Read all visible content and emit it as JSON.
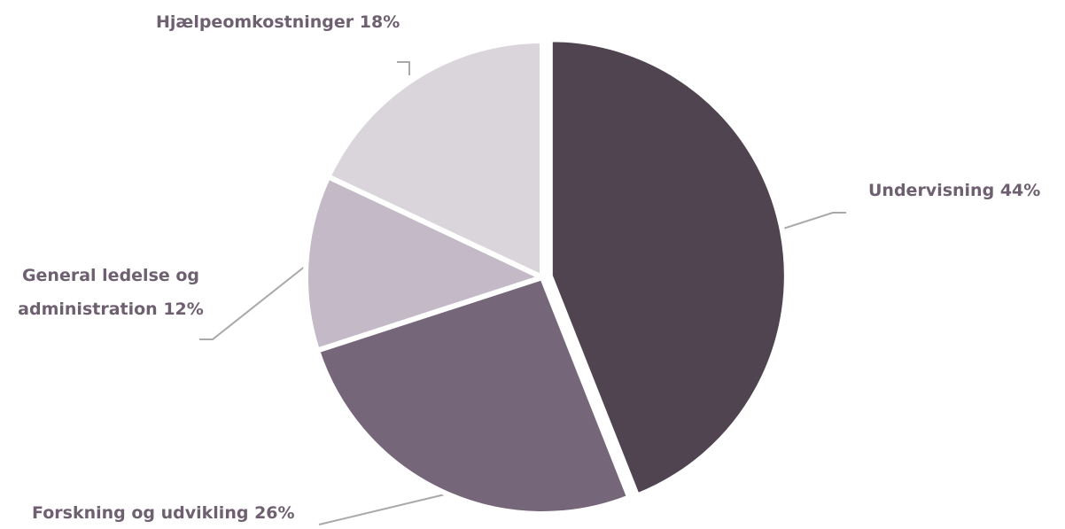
{
  "chart_data": {
    "type": "pie",
    "categories": [
      "Undervisning",
      "Forskning og udvikling",
      "General ledelse og administration",
      "Hjælpeomkostninger"
    ],
    "values": [
      44,
      26,
      12,
      18
    ],
    "value_labels": [
      "44%",
      "26%",
      "12%",
      "18%"
    ],
    "colors": [
      "#4f4450",
      "#756679",
      "#c4b9c6",
      "#d9d5db"
    ]
  }
}
